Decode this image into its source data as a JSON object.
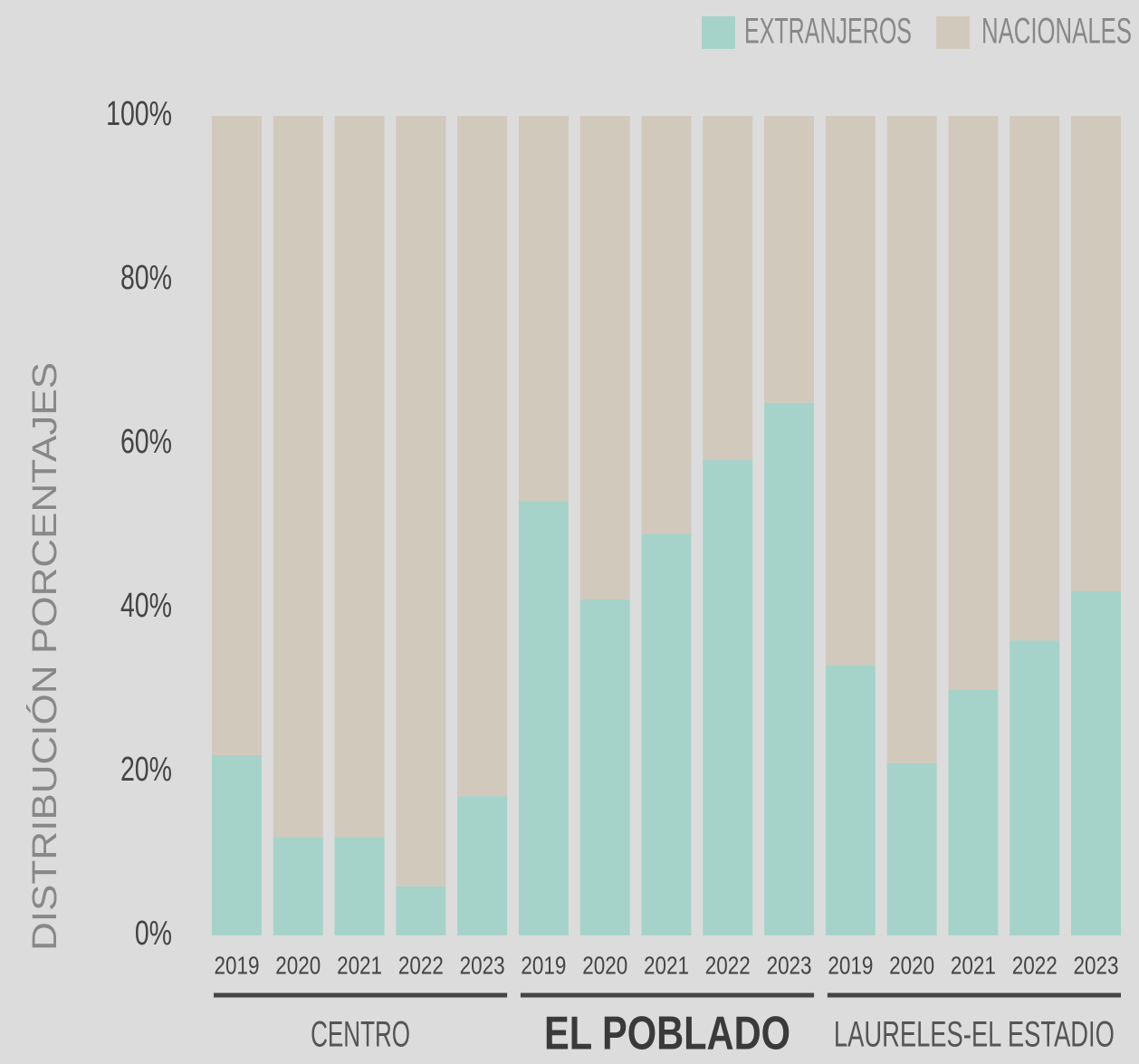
{
  "chart_data": {
    "type": "stacked_bar",
    "ylabel": "DISTRIBUCIÓN PORCENTAJES",
    "groups": [
      {
        "label": "CENTRO",
        "categories": [
          "2019",
          "2020",
          "2021",
          "2022",
          "2023"
        ]
      },
      {
        "label": "EL POBLADO",
        "categories": [
          "2019",
          "2020",
          "2021",
          "2022",
          "2023"
        ]
      },
      {
        "label": "LAURELES-EL ESTADIO",
        "categories": [
          "2019",
          "2020",
          "2021",
          "2022",
          "2023"
        ]
      }
    ],
    "series": [
      {
        "name": "EXTRANJEROS",
        "color": "#a6d3c9",
        "values": [
          22,
          12,
          12,
          6,
          17,
          53,
          41,
          49,
          58,
          65,
          33,
          21,
          30,
          36,
          42
        ]
      },
      {
        "name": "NACIONALES",
        "color": "#d1c9bc",
        "values": [
          78,
          88,
          88,
          94,
          83,
          47,
          59,
          51,
          42,
          35,
          67,
          79,
          70,
          64,
          58
        ]
      }
    ],
    "ylim": [
      0,
      100
    ],
    "yticks": [
      {
        "value": 0,
        "label": "0%"
      },
      {
        "value": 20,
        "label": "20%"
      },
      {
        "value": 40,
        "label": "40%"
      },
      {
        "value": 60,
        "label": "60%"
      },
      {
        "value": 80,
        "label": "80%"
      },
      {
        "value": 100,
        "label": "100%"
      }
    ],
    "legend": "top-right"
  }
}
